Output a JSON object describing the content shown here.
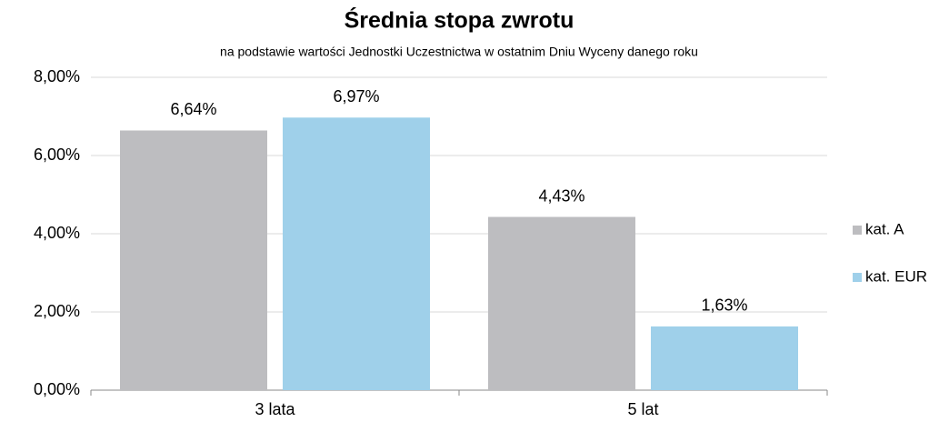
{
  "chart_data": {
    "type": "bar",
    "title": "Średnia stopa zwrotu",
    "subtitle": "na podstawie wartości Jednostki Uczestnictwa w ostatnim Dniu Wyceny danego roku",
    "categories": [
      "3 lata",
      "5 lat"
    ],
    "series": [
      {
        "name": "kat. A",
        "color": "#bdbdc0",
        "values": [
          6.64,
          4.43
        ],
        "value_labels": [
          "6,64%",
          "4,43%"
        ]
      },
      {
        "name": "kat. EUR",
        "color": "#9fd0ea",
        "values": [
          6.97,
          1.63
        ],
        "value_labels": [
          "6,97%",
          "1,63%"
        ]
      }
    ],
    "ylim": [
      0,
      8
    ],
    "yticks": [
      {
        "value": 0,
        "label": "0,00%"
      },
      {
        "value": 2,
        "label": "2,00%"
      },
      {
        "value": 4,
        "label": "4,00%"
      },
      {
        "value": 6,
        "label": "6,00%"
      },
      {
        "value": 8,
        "label": "8,00%"
      }
    ],
    "grid": true,
    "legend": "right"
  }
}
